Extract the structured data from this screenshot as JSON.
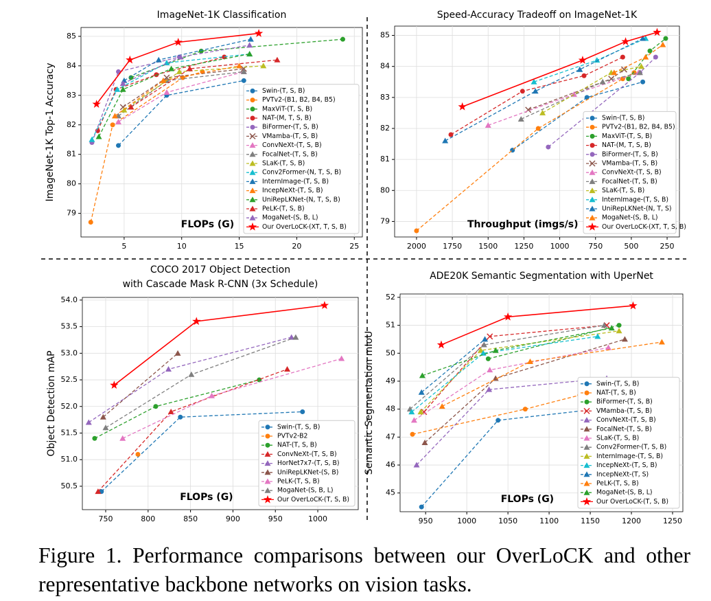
{
  "chart_data": [
    {
      "type": "line",
      "title": "ImageNet-1K Classification",
      "y_label": "ImageNet-1K Top-1 Accuracy",
      "x_label": "FLOPs (G)",
      "xlim": [
        1.25,
        25.7
      ],
      "ylim": [
        78.2,
        85.3
      ],
      "xticks": [
        5,
        10,
        15,
        20,
        25
      ],
      "yticks": [
        79,
        80,
        81,
        82,
        83,
        84,
        85
      ],
      "grid": true,
      "legend": "lower right",
      "series": [
        {
          "name": "Swin-(T, S, B)",
          "color": "#1f77b4",
          "marker": "o",
          "linestyle": "--",
          "x": [
            4.5,
            8.7,
            15.4
          ],
          "values": [
            81.3,
            83.0,
            83.5
          ]
        },
        {
          "name": "PVTv2-(B1, B2, B4, B5)",
          "color": "#ff7f0e",
          "marker": "o",
          "linestyle": "--",
          "x": [
            2.1,
            4.0,
            10.1,
            11.8
          ],
          "values": [
            78.7,
            82.0,
            83.6,
            83.8
          ]
        },
        {
          "name": "MaxViT-(T, S, B)",
          "color": "#2ca02c",
          "marker": "o",
          "linestyle": "--",
          "x": [
            5.6,
            11.7,
            24.0
          ],
          "values": [
            83.6,
            84.5,
            84.9
          ]
        },
        {
          "name": "NAT-(M, T, S, B)",
          "color": "#d62728",
          "marker": "o",
          "linestyle": "--",
          "x": [
            2.7,
            4.3,
            7.8,
            13.7
          ],
          "values": [
            81.8,
            83.2,
            83.7,
            84.3
          ]
        },
        {
          "name": "BiFormer-(T, S, B)",
          "color": "#9467bd",
          "marker": "o",
          "linestyle": "--",
          "x": [
            2.2,
            4.5,
            9.8
          ],
          "values": [
            81.4,
            83.8,
            84.3
          ]
        },
        {
          "name": "VMamba-(T, S, B)",
          "color": "#8c564b",
          "marker": "x",
          "linestyle": "--",
          "x": [
            4.9,
            8.7,
            15.4
          ],
          "values": [
            82.6,
            83.6,
            83.9
          ]
        },
        {
          "name": "ConvNeXt-(T, S, B)",
          "color": "#e377c2",
          "marker": "^",
          "linestyle": "--",
          "x": [
            4.5,
            8.7,
            15.4
          ],
          "values": [
            82.1,
            83.1,
            83.8
          ]
        },
        {
          "name": "FocalNet-(T, S, B)",
          "color": "#7f7f7f",
          "marker": "^",
          "linestyle": "--",
          "x": [
            4.5,
            8.7,
            15.4
          ],
          "values": [
            82.3,
            83.5,
            83.8
          ]
        },
        {
          "name": "SLaK-(T, S, B)",
          "color": "#bcbd22",
          "marker": "^",
          "linestyle": "--",
          "x": [
            5.0,
            9.8,
            17.1
          ],
          "values": [
            82.5,
            83.8,
            84.0
          ]
        },
        {
          "name": "Conv2Former-(N, T, S, B)",
          "color": "#17becf",
          "marker": "^",
          "linestyle": "--",
          "x": [
            2.2,
            4.4,
            8.7,
            15.9
          ],
          "values": [
            81.5,
            83.2,
            84.1,
            84.4
          ]
        },
        {
          "name": "InternImage-(T, S, B)",
          "color": "#1f77b4",
          "marker": "^",
          "linestyle": "--",
          "x": [
            5.0,
            8.0,
            16.0
          ],
          "values": [
            83.5,
            84.2,
            84.9
          ]
        },
        {
          "name": "IncepNeXt-(T, S, B)",
          "color": "#ff7f0e",
          "marker": "^",
          "linestyle": "--",
          "x": [
            4.2,
            8.4,
            15.0
          ],
          "values": [
            82.3,
            83.5,
            84.0
          ]
        },
        {
          "name": "UniRepLKNet-(N, T, S, B)",
          "color": "#2ca02c",
          "marker": "^",
          "linestyle": "--",
          "x": [
            2.8,
            4.9,
            9.1,
            15.9
          ],
          "values": [
            81.6,
            83.2,
            83.9,
            84.4
          ]
        },
        {
          "name": "PeLK-(T, S, B)",
          "color": "#d62728",
          "marker": "^",
          "linestyle": "--",
          "x": [
            5.6,
            10.7,
            18.3
          ],
          "values": [
            82.6,
            83.9,
            84.2
          ]
        },
        {
          "name": "MogaNet-(S, B, L)",
          "color": "#9467bd",
          "marker": "^",
          "linestyle": "--",
          "x": [
            4.9,
            9.9,
            15.9
          ],
          "values": [
            83.4,
            84.3,
            84.7
          ]
        },
        {
          "name": "Our OverLoCK-(XT, T, S, B)",
          "color": "#ff0000",
          "marker": "*",
          "linestyle": "-",
          "x": [
            2.6,
            5.5,
            9.7,
            16.7
          ],
          "values": [
            82.7,
            84.2,
            84.8,
            85.1
          ]
        }
      ]
    },
    {
      "type": "line",
      "title": "Speed-Accuracy Tradeoff on ImageNet-1K",
      "x_label": "Throughput (imgs/s)",
      "xlim": [
        2153,
        164
      ],
      "ylim": [
        78.5,
        85.3
      ],
      "xticks": [
        2000,
        1750,
        1500,
        1250,
        1000,
        750,
        500,
        250
      ],
      "yticks": [
        79,
        80,
        81,
        82,
        83,
        84,
        85
      ],
      "grid": true,
      "legend": "lower right",
      "series": [
        {
          "name": "Swin-(T, S, B)",
          "color": "#1f77b4",
          "marker": "o",
          "linestyle": "--",
          "x": [
            1330,
            810,
            420
          ],
          "values": [
            81.3,
            83.0,
            83.5
          ]
        },
        {
          "name": "PVTv2-(B1, B2, B4, B5)",
          "color": "#ff7f0e",
          "marker": "o",
          "linestyle": "--",
          "x": [
            2000,
            1150,
            560,
            480
          ],
          "values": [
            78.7,
            82.0,
            83.6,
            83.8
          ]
        },
        {
          "name": "MaxViT-(T, S, B)",
          "color": "#2ca02c",
          "marker": "o",
          "linestyle": "--",
          "x": [
            520,
            370,
            260
          ],
          "values": [
            83.6,
            84.5,
            84.9
          ]
        },
        {
          "name": "NAT-(M, T, S, B)",
          "color": "#d62728",
          "marker": "o",
          "linestyle": "--",
          "x": [
            1760,
            1260,
            830,
            560
          ],
          "values": [
            81.8,
            83.2,
            83.7,
            84.3
          ]
        },
        {
          "name": "BiFormer-(T, S, B)",
          "color": "#9467bd",
          "marker": "o",
          "linestyle": "--",
          "x": [
            1080,
            440,
            330
          ],
          "values": [
            81.4,
            83.8,
            84.3
          ]
        },
        {
          "name": "VMamba-(T, S, B)",
          "color": "#8c564b",
          "marker": "x",
          "linestyle": "--",
          "x": [
            1220,
            640,
            550
          ],
          "values": [
            82.6,
            83.6,
            83.9
          ]
        },
        {
          "name": "ConvNeXt-(T, S, B)",
          "color": "#e377c2",
          "marker": "^",
          "linestyle": "--",
          "x": [
            1500,
            900,
            450
          ],
          "values": [
            82.1,
            83.1,
            83.8
          ]
        },
        {
          "name": "FocalNet-(T, S, B)",
          "color": "#7f7f7f",
          "marker": "^",
          "linestyle": "--",
          "x": [
            1270,
            700,
            440
          ],
          "values": [
            82.3,
            83.5,
            83.8
          ]
        },
        {
          "name": "SLaK-(T, S, B)",
          "color": "#bcbd22",
          "marker": "^",
          "linestyle": "--",
          "x": [
            1120,
            640,
            430
          ],
          "values": [
            82.5,
            83.8,
            84.0
          ]
        },
        {
          "name": "InternImage-(T, S, B)",
          "color": "#17becf",
          "marker": "^",
          "linestyle": "--",
          "x": [
            1180,
            740,
            400
          ],
          "values": [
            83.5,
            84.2,
            84.9
          ]
        },
        {
          "name": "UniRepLKNet-(N, T, S)",
          "color": "#1f77b4",
          "marker": "^",
          "linestyle": "--",
          "x": [
            1800,
            1170,
            860,
            420
          ],
          "values": [
            81.6,
            83.2,
            83.9,
            84.9
          ]
        },
        {
          "name": "MogaNet-(S, B, L)",
          "color": "#ff7f0e",
          "marker": "^",
          "linestyle": "--",
          "x": [
            620,
            400,
            280
          ],
          "values": [
            83.8,
            84.3,
            84.7
          ]
        },
        {
          "name": "Our OverLoCK-(XT, T, S, B)",
          "color": "#ff0000",
          "marker": "*",
          "linestyle": "-",
          "x": [
            1680,
            840,
            540,
            320
          ],
          "values": [
            82.7,
            84.2,
            84.8,
            85.1
          ]
        }
      ]
    },
    {
      "type": "line",
      "title": [
        "COCO 2017 Object Detection",
        "with Cascade Mask R-CNN (3x Schedule)"
      ],
      "y_label": "Object Detection mAP",
      "x_label": "FLOPs (G)",
      "xlim": [
        722.5,
        1047.7
      ],
      "ylim": [
        50.06,
        54.05
      ],
      "xticks": [
        750,
        800,
        850,
        900,
        950,
        1000
      ],
      "yticks": [
        50.5,
        {
          "value": 51,
          "label": "51.0"
        },
        51.5,
        {
          "value": 52,
          "label": "52.0"
        },
        52.5,
        {
          "value": 53,
          "label": "53.0"
        },
        53.5,
        {
          "value": 54,
          "label": "54.0"
        }
      ],
      "grid": true,
      "legend": "lower right",
      "series": [
        {
          "name": "Swin-(T, S, B)",
          "color": "#1f77b4",
          "marker": "o",
          "linestyle": "--",
          "x": [
            745,
            838,
            982
          ],
          "values": [
            50.4,
            51.8,
            51.9
          ]
        },
        {
          "name": "PVTv2-B2",
          "color": "#ff7f0e",
          "marker": "o",
          "linestyle": "--",
          "x": [
            788
          ],
          "values": [
            51.1
          ]
        },
        {
          "name": "NAT-(T, S, B)",
          "color": "#2ca02c",
          "marker": "o",
          "linestyle": "--",
          "x": [
            737,
            809,
            931
          ],
          "values": [
            51.4,
            52.0,
            52.5
          ]
        },
        {
          "name": "ConvNeXt-(T, S, B)",
          "color": "#d62728",
          "marker": "^",
          "linestyle": "--",
          "x": [
            741,
            827,
            964
          ],
          "values": [
            50.4,
            51.9,
            52.7
          ]
        },
        {
          "name": "HorNet7x7-(T, S, B)",
          "color": "#9467bd",
          "marker": "^",
          "linestyle": "--",
          "x": [
            730,
            824,
            969
          ],
          "values": [
            51.7,
            52.7,
            53.3
          ]
        },
        {
          "name": "UniRepLKNet-(S, B)",
          "color": "#8c564b",
          "marker": "^",
          "linestyle": "--",
          "x": [
            747,
            835
          ],
          "values": [
            51.8,
            53.0
          ]
        },
        {
          "name": "PeLK-(T, S, B)",
          "color": "#e377c2",
          "marker": "^",
          "linestyle": "--",
          "x": [
            770,
            875,
            1028
          ],
          "values": [
            51.4,
            52.2,
            52.9
          ]
        },
        {
          "name": "MogaNet-(S, B, L)",
          "color": "#7f7f7f",
          "marker": "^",
          "linestyle": "--",
          "x": [
            750,
            851,
            974
          ],
          "values": [
            51.6,
            52.6,
            53.3
          ]
        },
        {
          "name": "Our OverLoCK-(T, S, B)",
          "color": "#ff0000",
          "marker": "*",
          "linestyle": "-",
          "x": [
            760,
            857,
            1008
          ],
          "values": [
            52.4,
            53.6,
            53.9
          ]
        }
      ]
    },
    {
      "type": "line",
      "title": "ADE20K Semantic Segmentation with UperNet",
      "y_label": "Semantic Segmentation mIoU",
      "x_label": "FLOPs (G)",
      "xlim": [
        919,
        1262.5
      ],
      "ylim": [
        44.33,
        52.12
      ],
      "xticks": [
        950,
        1000,
        1050,
        1100,
        1150,
        1200,
        1250
      ],
      "yticks": [
        45,
        46,
        47,
        48,
        49,
        50,
        51,
        52
      ],
      "grid": true,
      "legend": "lower right",
      "series": [
        {
          "name": "Swin-(T, S, B)",
          "color": "#1f77b4",
          "marker": "o",
          "linestyle": "--",
          "x": [
            945,
            1038,
            1188
          ],
          "values": [
            44.5,
            47.6,
            48.1
          ]
        },
        {
          "name": "NAT-(T, S, B)",
          "color": "#ff7f0e",
          "marker": "o",
          "linestyle": "--",
          "x": [
            934,
            1071,
            1137
          ],
          "values": [
            47.1,
            48.0,
            48.5
          ]
        },
        {
          "name": "BiFormer-(T, S, B)",
          "color": "#2ca02c",
          "marker": "o",
          "linestyle": "--",
          "x": [
            1026,
            1185
          ],
          "values": [
            49.8,
            51.0
          ]
        },
        {
          "name": "VMamba-(T, S, B)",
          "color": "#d62728",
          "marker": "x",
          "linestyle": "--",
          "x": [
            948,
            1028,
            1170
          ],
          "values": [
            47.9,
            50.6,
            51.0
          ]
        },
        {
          "name": "ConvNeXt-(T, S, B)",
          "color": "#9467bd",
          "marker": "^",
          "linestyle": "--",
          "x": [
            939,
            1027,
            1170
          ],
          "values": [
            46.0,
            48.7,
            49.1
          ]
        },
        {
          "name": "FocalNet-(T, S, B)",
          "color": "#8c564b",
          "marker": "^",
          "linestyle": "--",
          "x": [
            949,
            1035,
            1192
          ],
          "values": [
            46.8,
            49.1,
            50.5
          ]
        },
        {
          "name": "SLaK-(T, S, B)",
          "color": "#e377c2",
          "marker": "^",
          "linestyle": "--",
          "x": [
            936,
            1028,
            1172
          ],
          "values": [
            47.6,
            49.4,
            50.2
          ]
        },
        {
          "name": "Conv2Former-(T, S, B)",
          "color": "#7f7f7f",
          "marker": "^",
          "linestyle": "--",
          "x": [
            931,
            1021,
            1167
          ],
          "values": [
            48.0,
            50.3,
            51.0
          ]
        },
        {
          "name": "InternImage-(T, S, B)",
          "color": "#bcbd22",
          "marker": "^",
          "linestyle": "--",
          "x": [
            944,
            1017,
            1185
          ],
          "values": [
            47.9,
            50.1,
            50.8
          ]
        },
        {
          "name": "IncepNeXt-(T, S, B)",
          "color": "#17becf",
          "marker": "^",
          "linestyle": "--",
          "x": [
            933,
            1020,
            1159
          ],
          "values": [
            47.9,
            50.0,
            50.6
          ]
        },
        {
          "name": "IncepNeXt-(T, S)",
          "color": "#1f77b4",
          "marker": "^",
          "linestyle": "--",
          "x": [
            945,
            1022
          ],
          "values": [
            48.6,
            50.5
          ]
        },
        {
          "name": "PeLK-(T, S, B)",
          "color": "#ff7f0e",
          "marker": "^",
          "linestyle": "--",
          "x": [
            970,
            1077,
            1237
          ],
          "values": [
            48.1,
            49.7,
            50.4
          ]
        },
        {
          "name": "MogaNet-(S, B, L)",
          "color": "#2ca02c",
          "marker": "^",
          "linestyle": "--",
          "x": [
            946,
            1035,
            1176
          ],
          "values": [
            49.2,
            50.1,
            50.9
          ]
        },
        {
          "name": "Our OverLoCK-(T, S, B)",
          "color": "#ff0000",
          "marker": "*",
          "linestyle": "-",
          "x": [
            969,
            1050,
            1202
          ],
          "values": [
            50.3,
            51.3,
            51.7
          ]
        }
      ]
    }
  ],
  "caption": "Figure 1. Performance comparisons between our OverLoCK and other representative backbone networks on vision tasks."
}
